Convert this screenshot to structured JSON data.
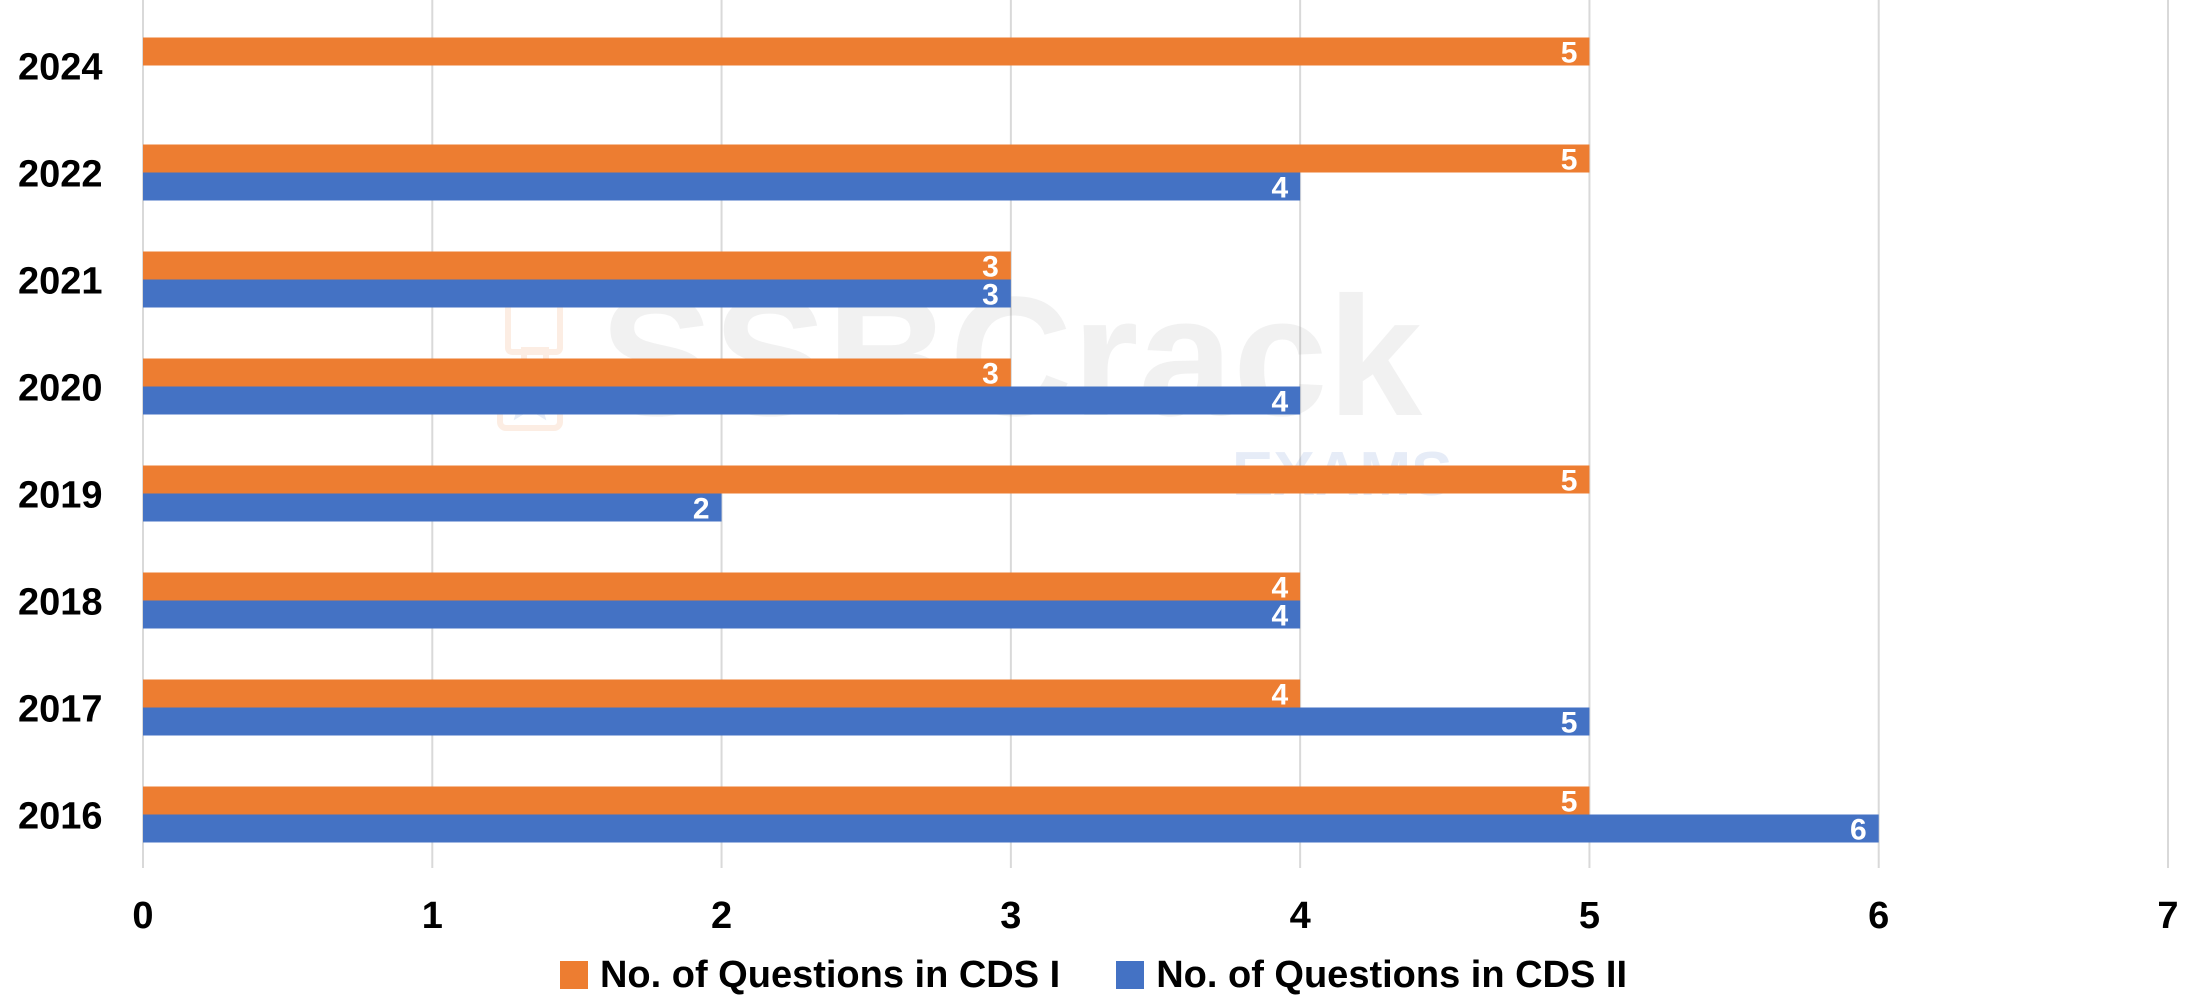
{
  "chart_data": {
    "type": "bar",
    "orientation": "horizontal",
    "categories": [
      "2016",
      "2017",
      "2018",
      "2019",
      "2020",
      "2021",
      "2022",
      "2024"
    ],
    "series": [
      {
        "name": "No. of Questions in CDS I",
        "color": "#ED7D31",
        "values": [
          5,
          4,
          4,
          5,
          3,
          3,
          5,
          5
        ]
      },
      {
        "name": "No. of Questions in CDS II",
        "color": "#4472C4",
        "values": [
          6,
          5,
          4,
          2,
          4,
          3,
          4,
          null
        ]
      }
    ],
    "xlim": [
      0,
      7
    ],
    "xticks": [
      "0",
      "1",
      "2",
      "3",
      "4",
      "5",
      "6",
      "7"
    ],
    "grid": true,
    "data_labels": true,
    "legend_position": "bottom"
  },
  "watermark": {
    "text": "SSBCrack",
    "subtext": "EXAMS"
  }
}
